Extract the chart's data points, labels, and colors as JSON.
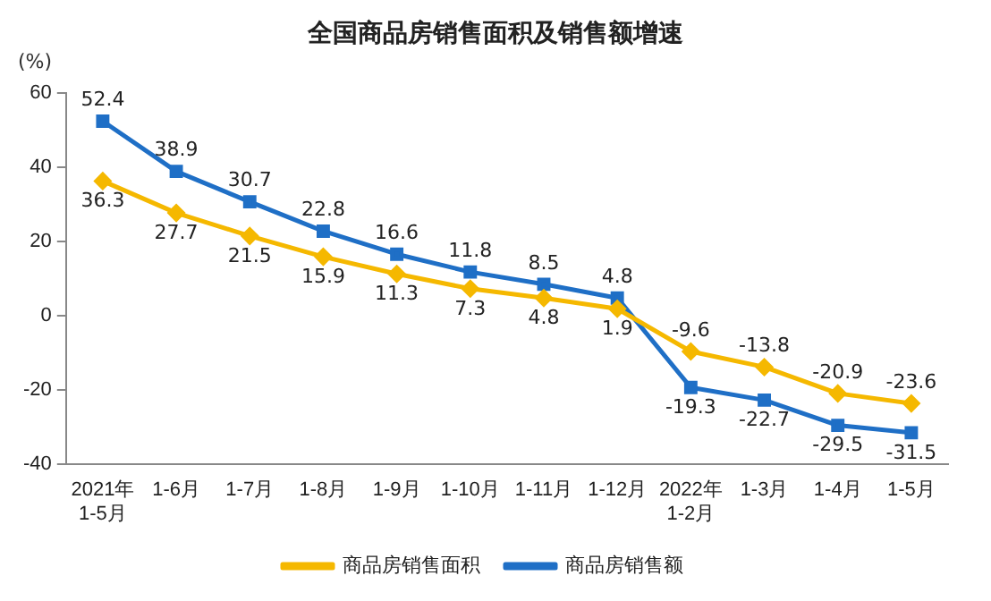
{
  "chart_data": {
    "type": "line",
    "title": "全国商品房销售面积及销售额增速",
    "ylabel": "(%)",
    "categories": [
      "2021年\n1-5月",
      "1-6月",
      "1-7月",
      "1-8月",
      "1-9月",
      "1-10月",
      "1-11月",
      "1-12月",
      "2022年\n1-2月",
      "1-3月",
      "1-4月",
      "1-5月"
    ],
    "series": [
      {
        "name": "商品房销售面积",
        "color": "#f5b800",
        "marker": "diamond",
        "values": [
          36.3,
          27.7,
          21.5,
          15.9,
          11.3,
          7.3,
          4.8,
          1.9,
          -9.6,
          -13.8,
          -20.9,
          -23.6
        ]
      },
      {
        "name": "商品房销售额",
        "color": "#1f6fc6",
        "marker": "square",
        "values": [
          52.4,
          38.9,
          30.7,
          22.8,
          16.6,
          11.8,
          8.5,
          4.8,
          -19.3,
          -22.7,
          -29.5,
          -31.5
        ]
      }
    ],
    "ylim": [
      -40,
      60
    ],
    "yticks": [
      -40,
      -20,
      0,
      20,
      40,
      60
    ],
    "grid": false,
    "legend": "bottom",
    "data_labels": true,
    "line_style": "solid"
  }
}
